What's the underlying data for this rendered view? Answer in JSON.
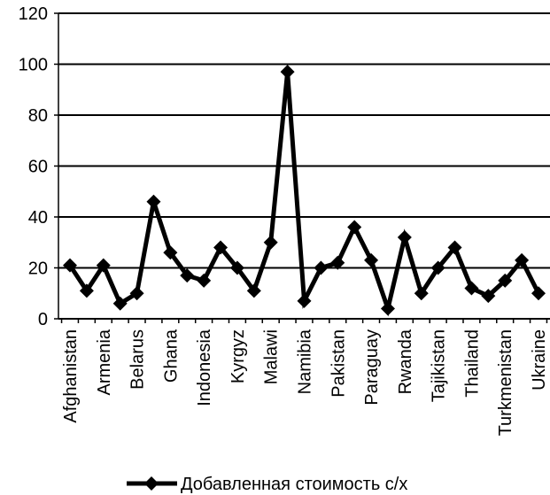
{
  "chart_data": {
    "type": "line",
    "title": "",
    "xlabel": "",
    "ylabel": "",
    "ylim": [
      0,
      120
    ],
    "yticks": [
      0,
      20,
      40,
      60,
      80,
      100,
      120
    ],
    "grid": "horizontal",
    "legend_position": "bottom",
    "color": "#000000",
    "marker": "diamond",
    "x_tick_labels": [
      "Afghanistan",
      "Armenia",
      "Belarus",
      "Ghana",
      "Indonesia",
      "Kyrgyz",
      "Malawi",
      "Namibia",
      "Pakistan",
      "Paraguay",
      "Rwanda",
      "Tajikistan",
      "Thailand",
      "Turkmenistan",
      "Ukraine"
    ],
    "x_label_every": 2,
    "series": [
      {
        "name": "Добавленная стоимость с/х",
        "values": [
          21,
          11,
          21,
          6,
          10,
          46,
          26,
          17,
          15,
          28,
          20,
          11,
          30,
          97,
          7,
          20,
          22,
          36,
          23,
          4,
          32,
          10,
          20,
          28,
          12,
          9,
          15,
          23,
          10
        ]
      }
    ]
  }
}
